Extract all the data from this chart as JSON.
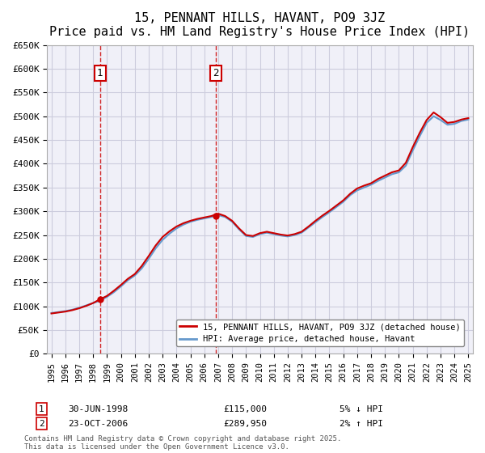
{
  "title": "15, PENNANT HILLS, HAVANT, PO9 3JZ",
  "subtitle": "Price paid vs. HM Land Registry's House Price Index (HPI)",
  "ylim": [
    0,
    650000
  ],
  "yticks": [
    0,
    50000,
    100000,
    150000,
    200000,
    250000,
    300000,
    350000,
    400000,
    450000,
    500000,
    550000,
    600000,
    650000
  ],
  "ytick_labels": [
    "£0",
    "£50K",
    "£100K",
    "£150K",
    "£200K",
    "£250K",
    "£300K",
    "£350K",
    "£400K",
    "£450K",
    "£500K",
    "£550K",
    "£600K",
    "£650K"
  ],
  "sale1_year": 1998.497,
  "sale1_price": 115000,
  "sale1_label": "1",
  "sale2_year": 2006.81,
  "sale2_price": 289950,
  "sale2_label": "2",
  "line_price_color": "#cc0000",
  "line_hpi_color": "#6699cc",
  "fill_color": "#ddeeff",
  "vline_color": "#cc0000",
  "marker_box_color": "#cc0000",
  "background_color": "#f0f0f8",
  "grid_color": "#ccccdd",
  "legend_label1": "15, PENNANT HILLS, HAVANT, PO9 3JZ (detached house)",
  "legend_label2": "HPI: Average price, detached house, Havant",
  "footer": "Contains HM Land Registry data © Crown copyright and database right 2025.\nThis data is licensed under the Open Government Licence v3.0.",
  "table_row1": [
    "1",
    "30-JUN-1998",
    "£115,000",
    "5% ↓ HPI"
  ],
  "table_row2": [
    "2",
    "23-OCT-2006",
    "£289,950",
    "2% ↑ HPI"
  ],
  "years_hpi": [
    1995.0,
    1995.5,
    1996.0,
    1996.5,
    1997.0,
    1997.5,
    1998.0,
    1998.5,
    1999.0,
    1999.5,
    2000.0,
    2000.5,
    2001.0,
    2001.5,
    2002.0,
    2002.5,
    2003.0,
    2003.5,
    2004.0,
    2004.5,
    2005.0,
    2005.5,
    2006.0,
    2006.5,
    2007.0,
    2007.5,
    2008.0,
    2008.5,
    2009.0,
    2009.5,
    2010.0,
    2010.5,
    2011.0,
    2011.5,
    2012.0,
    2012.5,
    2013.0,
    2013.5,
    2014.0,
    2014.5,
    2015.0,
    2015.5,
    2016.0,
    2016.5,
    2017.0,
    2017.5,
    2018.0,
    2018.5,
    2019.0,
    2019.5,
    2020.0,
    2020.5,
    2021.0,
    2021.5,
    2022.0,
    2022.5,
    2023.0,
    2023.5,
    2024.0,
    2024.5,
    2025.0
  ],
  "hpi_vals": [
    86000,
    88000,
    90000,
    93000,
    97000,
    102000,
    107000,
    112000,
    120000,
    130000,
    142000,
    155000,
    165000,
    180000,
    200000,
    222000,
    240000,
    253000,
    264000,
    272000,
    278000,
    282000,
    285000,
    288000,
    292000,
    288000,
    278000,
    262000,
    248000,
    246000,
    252000,
    255000,
    252000,
    249000,
    247000,
    250000,
    255000,
    266000,
    277000,
    288000,
    298000,
    309000,
    320000,
    334000,
    344000,
    350000,
    356000,
    364000,
    371000,
    378000,
    382000,
    396000,
    428000,
    458000,
    486000,
    500000,
    492000,
    482000,
    484000,
    490000,
    493000
  ],
  "price_vals": [
    85000,
    87000,
    89000,
    92000,
    96000,
    101000,
    107000,
    115000,
    122000,
    133000,
    145000,
    158000,
    168000,
    185000,
    206000,
    228000,
    246000,
    258000,
    268000,
    275000,
    280000,
    284000,
    287000,
    290000,
    295000,
    290000,
    280000,
    264000,
    250000,
    248000,
    254000,
    257000,
    254000,
    251000,
    249000,
    252000,
    257000,
    268000,
    280000,
    291000,
    301000,
    312000,
    323000,
    337000,
    348000,
    354000,
    359000,
    368000,
    375000,
    382000,
    386000,
    402000,
    435000,
    465000,
    492000,
    508000,
    498000,
    486000,
    488000,
    493000,
    496000
  ]
}
